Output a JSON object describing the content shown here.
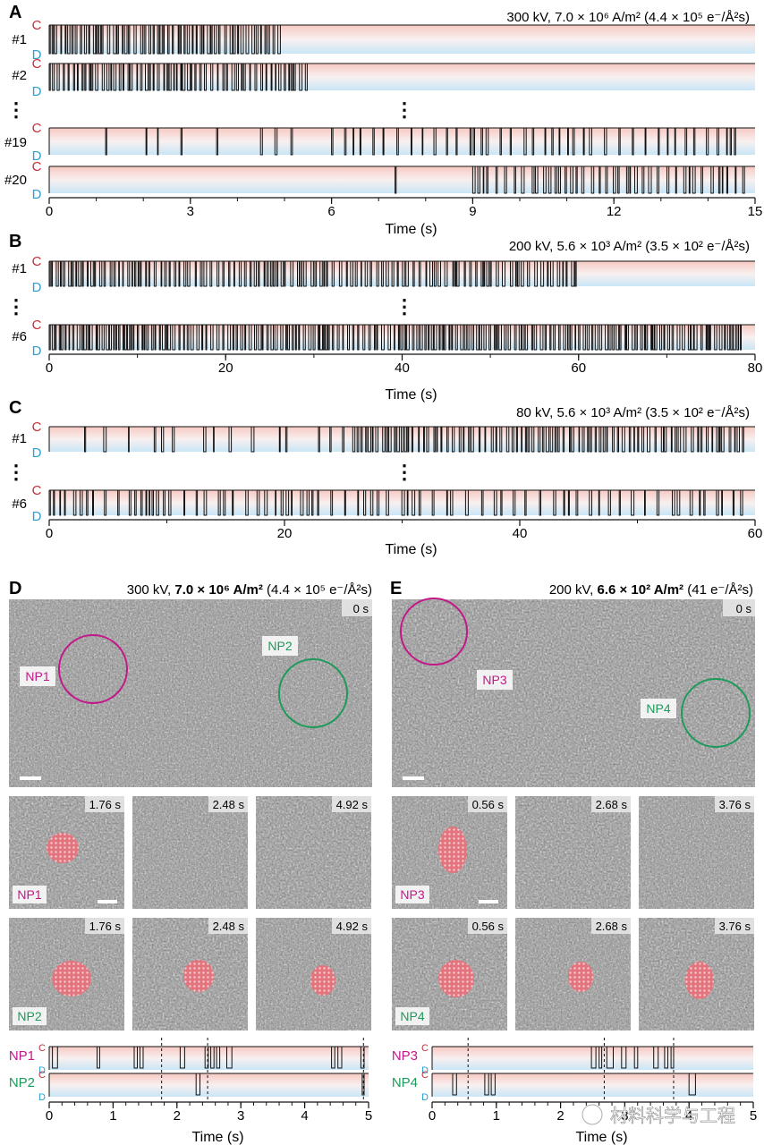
{
  "panels": {
    "A": {
      "letter": "A",
      "condition": "300 kV, 7.0 × 10⁶ A/m² (4.4 × 10⁵ e⁻/Å²s)",
      "tracks": [
        "#1",
        "#2",
        "#19",
        "#20"
      ],
      "state_labels": {
        "top": "C",
        "bottom": "D"
      },
      "x_ticks": [
        "0",
        "3",
        "6",
        "9",
        "12",
        "15"
      ],
      "x_max": 15,
      "xlabel": "Time (s)",
      "ellipsis": "⋮"
    },
    "B": {
      "letter": "B",
      "condition": "200 kV, 5.6 × 10³ A/m² (3.5 × 10² e⁻/Å²s)",
      "tracks": [
        "#1",
        "#6"
      ],
      "state_labels": {
        "top": "C",
        "bottom": "D"
      },
      "x_ticks": [
        "0",
        "20",
        "40",
        "60",
        "80"
      ],
      "x_max": 80,
      "xlabel": "Time (s)",
      "ellipsis": "⋮"
    },
    "C": {
      "letter": "C",
      "condition": "80 kV, 5.6 × 10³ A/m² (3.5 × 10² e⁻/Å²s)",
      "tracks": [
        "#1",
        "#6"
      ],
      "state_labels": {
        "top": "C",
        "bottom": "D"
      },
      "x_ticks": [
        "0",
        "20",
        "40",
        "60"
      ],
      "x_max": 60,
      "xlabel": "Time (s)",
      "ellipsis": "⋮"
    },
    "D": {
      "letter": "D",
      "condition_prefix": "300 kV, ",
      "condition_bold": "7.0 × 10⁶ A/m²",
      "condition_suffix": " (4.4 × 10⁵ e⁻/Å²s)",
      "main_time": "0 s",
      "np_labels": [
        "NP1",
        "NP2"
      ],
      "frame_times": [
        "1.76 s",
        "2.48 s",
        "4.92 s"
      ],
      "traces": [
        "NP1",
        "NP2"
      ],
      "state_labels": {
        "top": "C",
        "bottom": "D"
      },
      "x_ticks": [
        "0",
        "1",
        "2",
        "3",
        "4",
        "5"
      ],
      "x_max": 5,
      "xlabel": "Time (s)"
    },
    "E": {
      "letter": "E",
      "condition_prefix": "200 kV, ",
      "condition_bold": "6.6 × 10² A/m²",
      "condition_suffix": " (41 e⁻/Å²s)",
      "main_time": "0 s",
      "np_labels": [
        "NP3",
        "NP4"
      ],
      "frame_times": [
        "0.56 s",
        "2.68 s",
        "3.76 s"
      ],
      "traces": [
        "NP3",
        "NP4"
      ],
      "state_labels": {
        "top": "C",
        "bottom": "D"
      },
      "x_ticks": [
        "0",
        "1",
        "2",
        "3",
        "4",
        "5"
      ],
      "x_max": 5,
      "xlabel": "Time (s)"
    }
  },
  "watermark": "材料科学与工程",
  "colors": {
    "C": "#c0303a",
    "D": "#2a9fd0",
    "np_magenta": "#c2188a",
    "np_green": "#1e9a5a",
    "particle": "#e8707a"
  }
}
